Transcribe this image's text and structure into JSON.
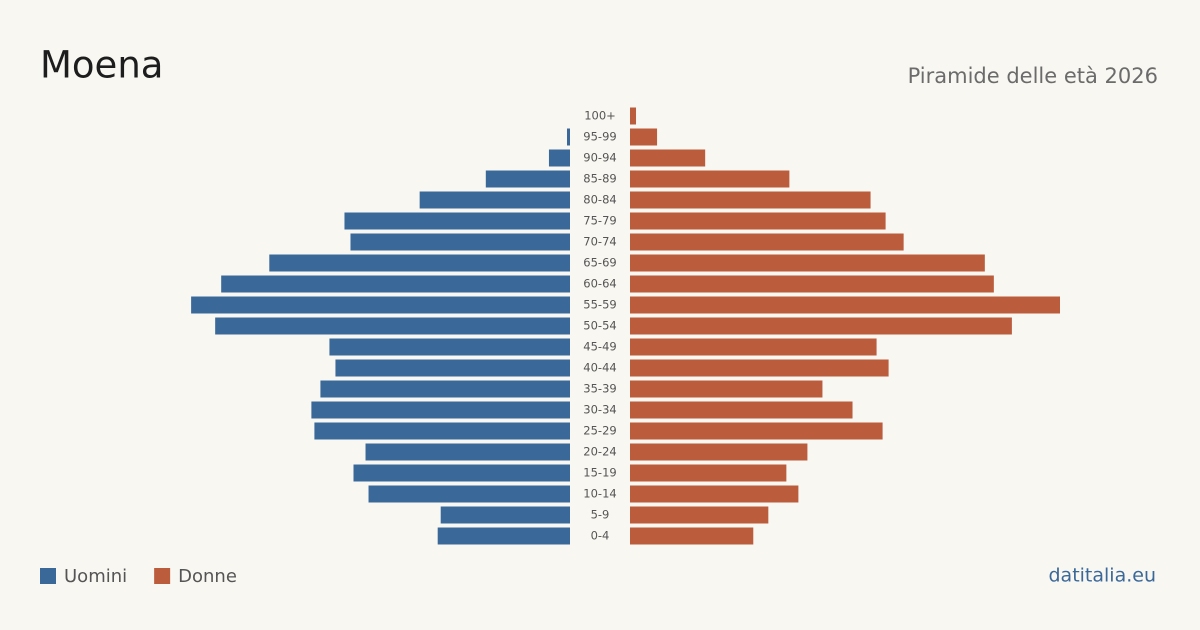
{
  "chart_data": {
    "type": "pyramid",
    "title": "Moena",
    "subtitle": "Piramide delle età 2026",
    "categories": [
      "100+",
      "95-99",
      "90-94",
      "85-89",
      "80-84",
      "75-79",
      "70-74",
      "65-69",
      "60-64",
      "55-59",
      "50-54",
      "45-49",
      "40-44",
      "35-39",
      "30-34",
      "25-29",
      "20-24",
      "15-19",
      "10-14",
      "5-9",
      "0-4"
    ],
    "series": [
      {
        "name": "Uomini",
        "color": "#3a6899",
        "values": [
          0,
          1,
          7,
          28,
          50,
          75,
          73,
          100,
          116,
          126,
          118,
          80,
          78,
          83,
          86,
          85,
          68,
          72,
          67,
          43,
          44
        ]
      },
      {
        "name": "Donne",
        "color": "#bb5c3c",
        "values": [
          2,
          9,
          25,
          53,
          80,
          85,
          91,
          118,
          121,
          143,
          127,
          82,
          86,
          64,
          74,
          84,
          59,
          52,
          56,
          46,
          41
        ]
      }
    ],
    "source": "datitalia.eu"
  }
}
